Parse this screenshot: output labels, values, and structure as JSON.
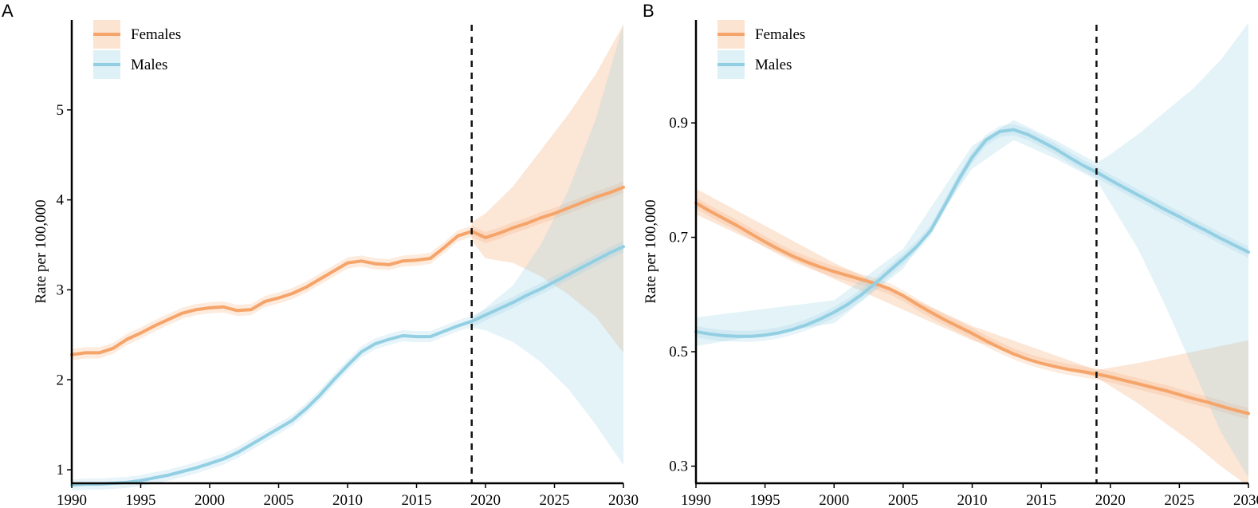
{
  "chart_data": [
    {
      "panel": "A",
      "type": "line",
      "ylabel": "Rate per 100,000",
      "xlabel": "",
      "xlim": [
        1990,
        2030
      ],
      "ylim": [
        0.85,
        6.0
      ],
      "x_ticks": [
        "1990",
        "1995",
        "2000",
        "2005",
        "2010",
        "2015",
        "2020",
        "2025",
        "2030"
      ],
      "y_ticks": [
        "1",
        "2",
        "3",
        "4",
        "5"
      ],
      "reference_line_x": 2019,
      "legend": [
        "Females",
        "Males"
      ],
      "legend_position": "top-left",
      "series": [
        {
          "name": "Females",
          "color": "#F5A46A",
          "x": [
            1990,
            1991,
            1992,
            1993,
            1994,
            1995,
            1996,
            1997,
            1998,
            1999,
            2000,
            2001,
            2002,
            2003,
            2004,
            2005,
            2006,
            2007,
            2008,
            2009,
            2010,
            2011,
            2012,
            2013,
            2014,
            2015,
            2016,
            2017,
            2018,
            2019,
            2020,
            2021,
            2022,
            2023,
            2024,
            2025,
            2026,
            2027,
            2028,
            2029,
            2030
          ],
          "values": [
            2.28,
            2.3,
            2.3,
            2.35,
            2.45,
            2.52,
            2.6,
            2.67,
            2.74,
            2.78,
            2.8,
            2.81,
            2.77,
            2.78,
            2.87,
            2.91,
            2.96,
            3.03,
            3.12,
            3.21,
            3.3,
            3.32,
            3.29,
            3.28,
            3.32,
            3.33,
            3.35,
            3.47,
            3.6,
            3.65,
            3.58,
            3.63,
            3.69,
            3.74,
            3.8,
            3.85,
            3.91,
            3.97,
            4.03,
            4.08,
            4.14
          ],
          "band_x": [
            2019,
            2020,
            2022,
            2024,
            2026,
            2028,
            2030
          ],
          "band_lower": [
            3.55,
            3.35,
            3.3,
            3.15,
            2.95,
            2.7,
            2.3
          ],
          "band_upper": [
            3.75,
            3.85,
            4.15,
            4.55,
            4.95,
            5.4,
            5.95
          ]
        },
        {
          "name": "Males",
          "color": "#93CFE3",
          "x": [
            1990,
            1991,
            1992,
            1993,
            1994,
            1995,
            1996,
            1997,
            1998,
            1999,
            2000,
            2001,
            2002,
            2003,
            2004,
            2005,
            2006,
            2007,
            2008,
            2009,
            2010,
            2011,
            2012,
            2013,
            2014,
            2015,
            2016,
            2017,
            2018,
            2019,
            2020,
            2021,
            2022,
            2023,
            2024,
            2025,
            2026,
            2027,
            2028,
            2029,
            2030
          ],
          "values": [
            0.83,
            0.84,
            0.84,
            0.85,
            0.86,
            0.88,
            0.91,
            0.94,
            0.98,
            1.02,
            1.07,
            1.12,
            1.19,
            1.28,
            1.37,
            1.46,
            1.55,
            1.68,
            1.83,
            2.0,
            2.16,
            2.31,
            2.4,
            2.45,
            2.49,
            2.48,
            2.48,
            2.54,
            2.6,
            2.65,
            2.72,
            2.79,
            2.86,
            2.94,
            3.01,
            3.09,
            3.17,
            3.25,
            3.33,
            3.41,
            3.48
          ],
          "band_x": [
            2019,
            2020,
            2022,
            2024,
            2026,
            2028,
            2030
          ],
          "band_lower": [
            2.58,
            2.55,
            2.42,
            2.2,
            1.9,
            1.5,
            1.05
          ],
          "band_upper": [
            2.68,
            2.8,
            3.05,
            3.5,
            4.1,
            4.9,
            5.95
          ]
        }
      ]
    },
    {
      "panel": "B",
      "type": "line",
      "ylabel": "Rate per 100,000",
      "xlabel": "",
      "xlim": [
        1990,
        2030
      ],
      "ylim": [
        0.27,
        1.08
      ],
      "x_ticks": [
        "1990",
        "1995",
        "2000",
        "2005",
        "2010",
        "2015",
        "2020",
        "2025",
        "2030"
      ],
      "y_ticks": [
        "0.3",
        "0.5",
        "0.7",
        "0.9"
      ],
      "reference_line_x": 2019,
      "legend": [
        "Females",
        "Males"
      ],
      "legend_position": "top-left",
      "series": [
        {
          "name": "Females",
          "color": "#F5A46A",
          "x": [
            1990,
            1991,
            1992,
            1993,
            1994,
            1995,
            1996,
            1997,
            1998,
            1999,
            2000,
            2001,
            2002,
            2003,
            2004,
            2005,
            2006,
            2007,
            2008,
            2009,
            2010,
            2011,
            2012,
            2013,
            2014,
            2015,
            2016,
            2017,
            2018,
            2019,
            2020,
            2021,
            2022,
            2023,
            2024,
            2025,
            2026,
            2027,
            2028,
            2029,
            2030
          ],
          "values": [
            0.76,
            0.746,
            0.733,
            0.72,
            0.706,
            0.692,
            0.679,
            0.667,
            0.657,
            0.648,
            0.64,
            0.633,
            0.626,
            0.619,
            0.61,
            0.598,
            0.583,
            0.569,
            0.556,
            0.544,
            0.532,
            0.519,
            0.507,
            0.496,
            0.487,
            0.48,
            0.474,
            0.469,
            0.465,
            0.461,
            0.456,
            0.45,
            0.444,
            0.438,
            0.432,
            0.425,
            0.418,
            0.412,
            0.405,
            0.398,
            0.392
          ],
          "band_x": [
            1990,
            2000,
            2010,
            2019,
            2020,
            2022,
            2024,
            2026,
            2028,
            2030
          ],
          "band_lower": [
            0.74,
            0.627,
            0.52,
            0.455,
            0.44,
            0.41,
            0.375,
            0.34,
            0.3,
            0.265
          ],
          "band_upper": [
            0.785,
            0.655,
            0.545,
            0.468,
            0.472,
            0.48,
            0.49,
            0.5,
            0.51,
            0.52
          ]
        },
        {
          "name": "Males",
          "color": "#93CFE3",
          "x": [
            1990,
            1991,
            1992,
            1993,
            1994,
            1995,
            1996,
            1997,
            1998,
            1999,
            2000,
            2001,
            2002,
            2003,
            2004,
            2005,
            2006,
            2007,
            2008,
            2009,
            2010,
            2011,
            2012,
            2013,
            2014,
            2015,
            2016,
            2017,
            2018,
            2019,
            2020,
            2021,
            2022,
            2023,
            2024,
            2025,
            2026,
            2027,
            2028,
            2029,
            2030
          ],
          "values": [
            0.535,
            0.531,
            0.528,
            0.527,
            0.527,
            0.529,
            0.533,
            0.539,
            0.547,
            0.557,
            0.569,
            0.583,
            0.6,
            0.62,
            0.641,
            0.662,
            0.684,
            0.712,
            0.755,
            0.8,
            0.84,
            0.87,
            0.885,
            0.888,
            0.88,
            0.868,
            0.855,
            0.84,
            0.826,
            0.814,
            0.8,
            0.787,
            0.774,
            0.761,
            0.748,
            0.736,
            0.723,
            0.711,
            0.698,
            0.686,
            0.674
          ],
          "band_x": [
            1990,
            2000,
            2005,
            2010,
            2013,
            2016,
            2019,
            2020,
            2022,
            2024,
            2026,
            2028,
            2030
          ],
          "band_lower": [
            0.51,
            0.55,
            0.645,
            0.82,
            0.87,
            0.838,
            0.8,
            0.76,
            0.68,
            0.58,
            0.47,
            0.36,
            0.28
          ],
          "band_upper": [
            0.56,
            0.59,
            0.68,
            0.86,
            0.905,
            0.87,
            0.83,
            0.845,
            0.88,
            0.92,
            0.96,
            1.01,
            1.075
          ]
        }
      ]
    }
  ]
}
